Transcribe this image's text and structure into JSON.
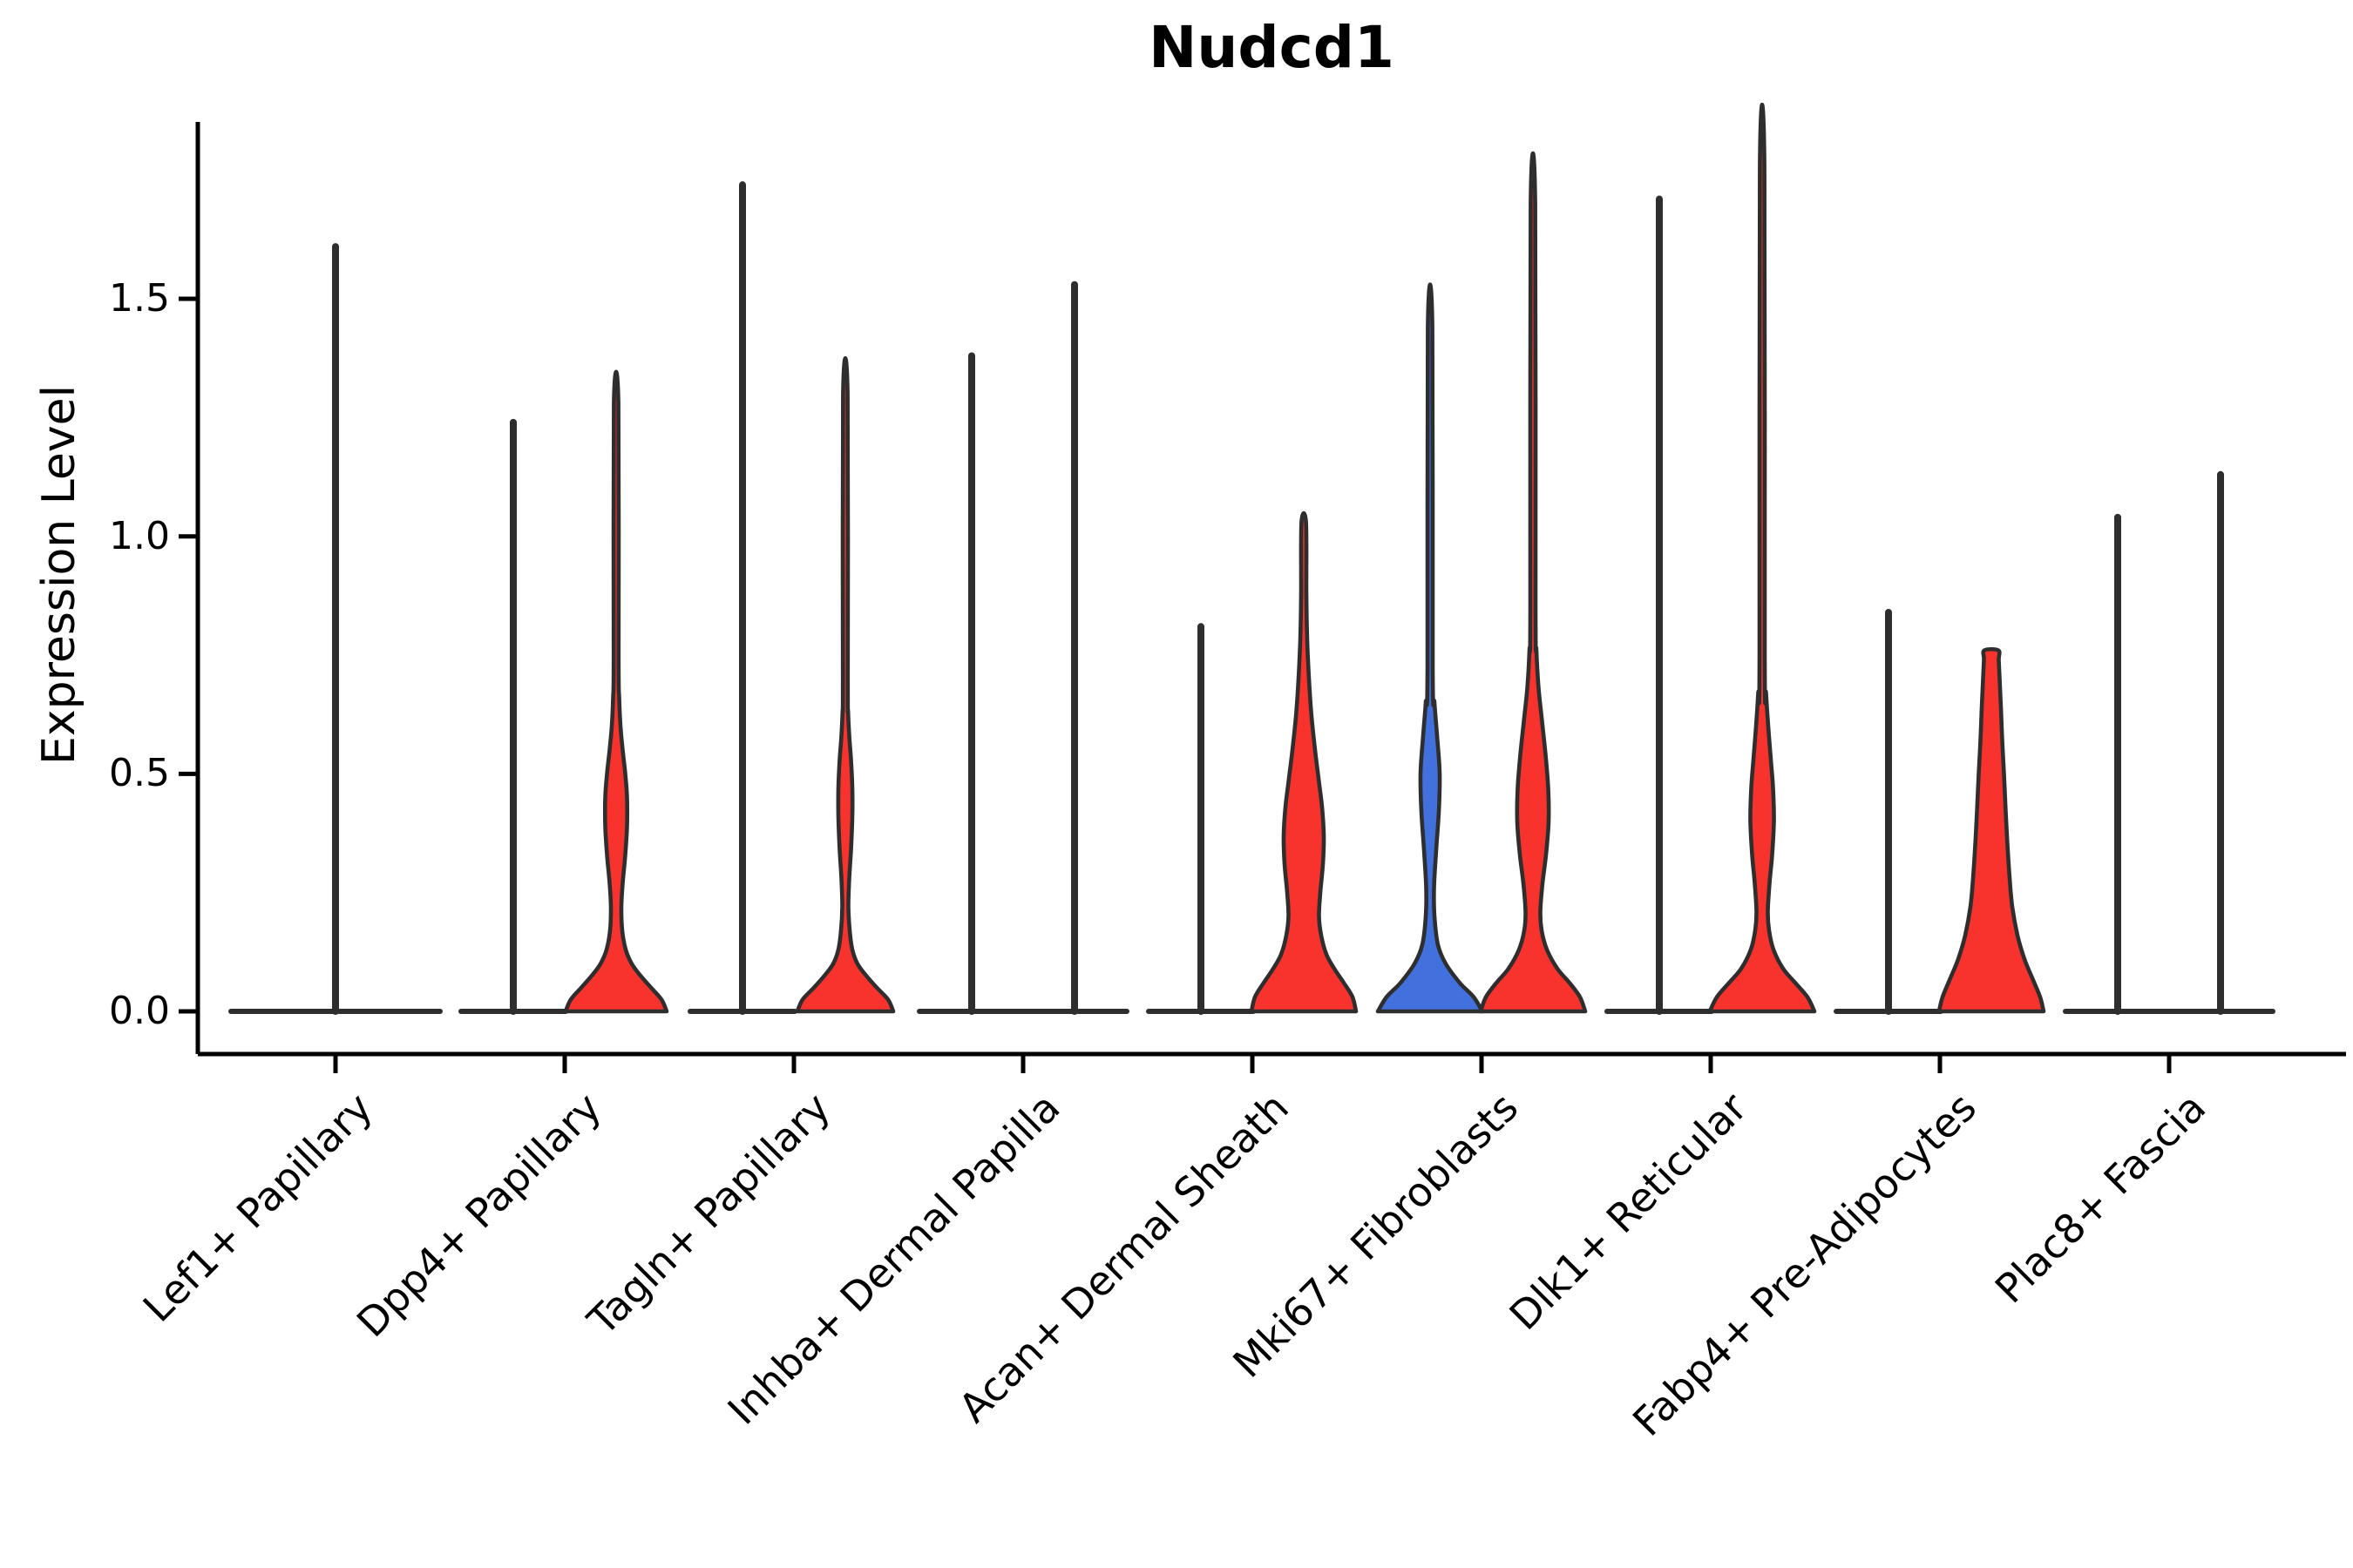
{
  "title": "Nudcd1",
  "ylabel": "Expression Level",
  "chart_data": {
    "type": "violin",
    "title": "Nudcd1",
    "xlabel": "",
    "ylabel": "Expression Level",
    "ylim": [
      -0.09,
      1.87
    ],
    "yticks": [
      0.0,
      0.5,
      1.0,
      1.5
    ],
    "yticklabels": [
      "0.0",
      "0.5",
      "1.0",
      "1.5"
    ],
    "grid": false,
    "legend": "none",
    "categories": [
      "Lef1+ Papillary",
      "Dpp4+ Papillary",
      "Tagln+ Papillary",
      "Inhba+ Dermal Papilla",
      "Acan+ Dermal Sheath",
      "Mki67+ Fibroblasts",
      "Dlk1+ Reticular",
      "Fabp4+ Pre-Adipocytes",
      "Plac8+ Fascia"
    ],
    "colors": {
      "fill_blue": "#4271de",
      "fill_red": "#f8332d",
      "outline": "#2e2e2e",
      "axis": "#000000"
    },
    "violins": [
      {
        "category": "Lef1+ Papillary",
        "slot": "center",
        "style": "flat",
        "max": 1.61
      },
      {
        "category": "Dpp4+ Papillary",
        "slot": "left",
        "style": "flat",
        "max": 1.24
      },
      {
        "category": "Dpp4+ Papillary",
        "slot": "right",
        "style": "filled",
        "fill": "#f8332d",
        "max": 1.28,
        "profile": [
          [
            0,
            58
          ],
          [
            0.025,
            52
          ],
          [
            0.05,
            40
          ],
          [
            0.075,
            28
          ],
          [
            0.1,
            18
          ],
          [
            0.13,
            11
          ],
          [
            0.17,
            7
          ],
          [
            0.22,
            6
          ],
          [
            0.27,
            7.5
          ],
          [
            0.33,
            10.5
          ],
          [
            0.39,
            12.5
          ],
          [
            0.45,
            12.5
          ],
          [
            0.5,
            10.5
          ],
          [
            0.55,
            7.5
          ],
          [
            0.6,
            5
          ],
          [
            0.66,
            3.5
          ],
          [
            0.75,
            2.8
          ],
          [
            1.28,
            2.6
          ]
        ]
      },
      {
        "category": "Tagln+ Papillary",
        "slot": "left",
        "style": "flat",
        "max": 1.74
      },
      {
        "category": "Tagln+ Papillary",
        "slot": "right",
        "style": "filled",
        "fill": "#f8332d",
        "max": 1.3,
        "profile": [
          [
            0,
            55
          ],
          [
            0.025,
            49
          ],
          [
            0.05,
            36
          ],
          [
            0.075,
            24
          ],
          [
            0.1,
            14
          ],
          [
            0.13,
            8
          ],
          [
            0.17,
            5
          ],
          [
            0.22,
            3.5
          ],
          [
            0.28,
            4.5
          ],
          [
            0.34,
            6.5
          ],
          [
            0.41,
            8
          ],
          [
            0.47,
            8
          ],
          [
            0.53,
            6.5
          ],
          [
            0.58,
            4.5
          ],
          [
            0.63,
            3.2
          ],
          [
            0.7,
            2.8
          ],
          [
            1.3,
            2.6
          ]
        ]
      },
      {
        "category": "Inhba+ Dermal Papilla",
        "slot": "left",
        "style": "flat",
        "max": 1.38
      },
      {
        "category": "Inhba+ Dermal Papilla",
        "slot": "right",
        "style": "flat",
        "max": 1.53
      },
      {
        "category": "Acan+ Dermal Sheath",
        "slot": "left",
        "style": "flat",
        "max": 0.81
      },
      {
        "category": "Acan+ Dermal Sheath",
        "slot": "right",
        "style": "filled",
        "fill": "#f8332d",
        "max": 1.03,
        "profile": [
          [
            0,
            60
          ],
          [
            0.03,
            56
          ],
          [
            0.06,
            46
          ],
          [
            0.09,
            35
          ],
          [
            0.12,
            26
          ],
          [
            0.16,
            20
          ],
          [
            0.2,
            17.5
          ],
          [
            0.25,
            19
          ],
          [
            0.31,
            22
          ],
          [
            0.37,
            23
          ],
          [
            0.43,
            21
          ],
          [
            0.49,
            17
          ],
          [
            0.55,
            13
          ],
          [
            0.62,
            9
          ],
          [
            0.7,
            6
          ],
          [
            0.78,
            4
          ],
          [
            0.88,
            3
          ],
          [
            1.03,
            2.6
          ]
        ]
      },
      {
        "category": "Mki67+ Fibroblasts",
        "slot": "left",
        "style": "filled",
        "fill": "#4271de",
        "max": 1.44,
        "profile": [
          [
            0,
            60
          ],
          [
            0.03,
            50
          ],
          [
            0.06,
            34
          ],
          [
            0.1,
            18
          ],
          [
            0.14,
            9
          ],
          [
            0.2,
            5
          ],
          [
            0.26,
            4.5
          ],
          [
            0.34,
            7
          ],
          [
            0.42,
            10
          ],
          [
            0.5,
            11
          ],
          [
            0.58,
            8
          ],
          [
            0.65,
            5
          ],
          [
            0.72,
            3
          ],
          [
            1.44,
            2.6
          ]
        ]
      },
      {
        "category": "Mki67+ Fibroblasts",
        "slot": "right",
        "style": "filled",
        "fill": "#f8332d",
        "max": 1.7,
        "profile": [
          [
            0,
            60
          ],
          [
            0.03,
            54
          ],
          [
            0.06,
            42
          ],
          [
            0.09,
            28
          ],
          [
            0.13,
            16
          ],
          [
            0.17,
            10
          ],
          [
            0.21,
            8.5
          ],
          [
            0.27,
            11
          ],
          [
            0.33,
            15
          ],
          [
            0.4,
            18
          ],
          [
            0.47,
            17.5
          ],
          [
            0.54,
            14.5
          ],
          [
            0.61,
            10.5
          ],
          [
            0.68,
            6.5
          ],
          [
            0.76,
            4
          ],
          [
            0.85,
            3
          ],
          [
            1.7,
            2.6
          ]
        ]
      },
      {
        "category": "Dlk1+ Reticular",
        "slot": "left",
        "style": "flat",
        "max": 1.71
      },
      {
        "category": "Dlk1+ Reticular",
        "slot": "right",
        "style": "filled",
        "fill": "#f8332d",
        "max": 1.78,
        "profile": [
          [
            0,
            60
          ],
          [
            0.03,
            52
          ],
          [
            0.06,
            38
          ],
          [
            0.09,
            24
          ],
          [
            0.13,
            13
          ],
          [
            0.17,
            8
          ],
          [
            0.21,
            6.5
          ],
          [
            0.27,
            8.5
          ],
          [
            0.33,
            11.5
          ],
          [
            0.4,
            13.5
          ],
          [
            0.47,
            12.5
          ],
          [
            0.53,
            10
          ],
          [
            0.6,
            7
          ],
          [
            0.67,
            4.5
          ],
          [
            0.75,
            3
          ],
          [
            1.78,
            2.6
          ]
        ]
      },
      {
        "category": "Fabp4+ Pre-Adipocytes",
        "slot": "left",
        "style": "flat",
        "max": 0.84
      },
      {
        "category": "Fabp4+ Pre-Adipocytes",
        "slot": "right",
        "style": "filled",
        "fill": "#f8332d",
        "max": 0.76,
        "flat_top": true,
        "profile": [
          [
            0,
            60
          ],
          [
            0.03,
            56
          ],
          [
            0.07,
            47
          ],
          [
            0.11,
            38
          ],
          [
            0.16,
            30
          ],
          [
            0.22,
            24
          ],
          [
            0.28,
            21
          ],
          [
            0.35,
            18.5
          ],
          [
            0.42,
            16.5
          ],
          [
            0.5,
            14.5
          ],
          [
            0.57,
            12.5
          ],
          [
            0.64,
            11
          ],
          [
            0.7,
            9.5
          ],
          [
            0.74,
            8.5
          ],
          [
            0.76,
            8
          ]
        ]
      },
      {
        "category": "Plac8+ Fascia",
        "slot": "left",
        "style": "flat",
        "max": 1.04
      },
      {
        "category": "Plac8+ Fascia",
        "slot": "right",
        "style": "flat",
        "max": 1.13
      }
    ]
  }
}
